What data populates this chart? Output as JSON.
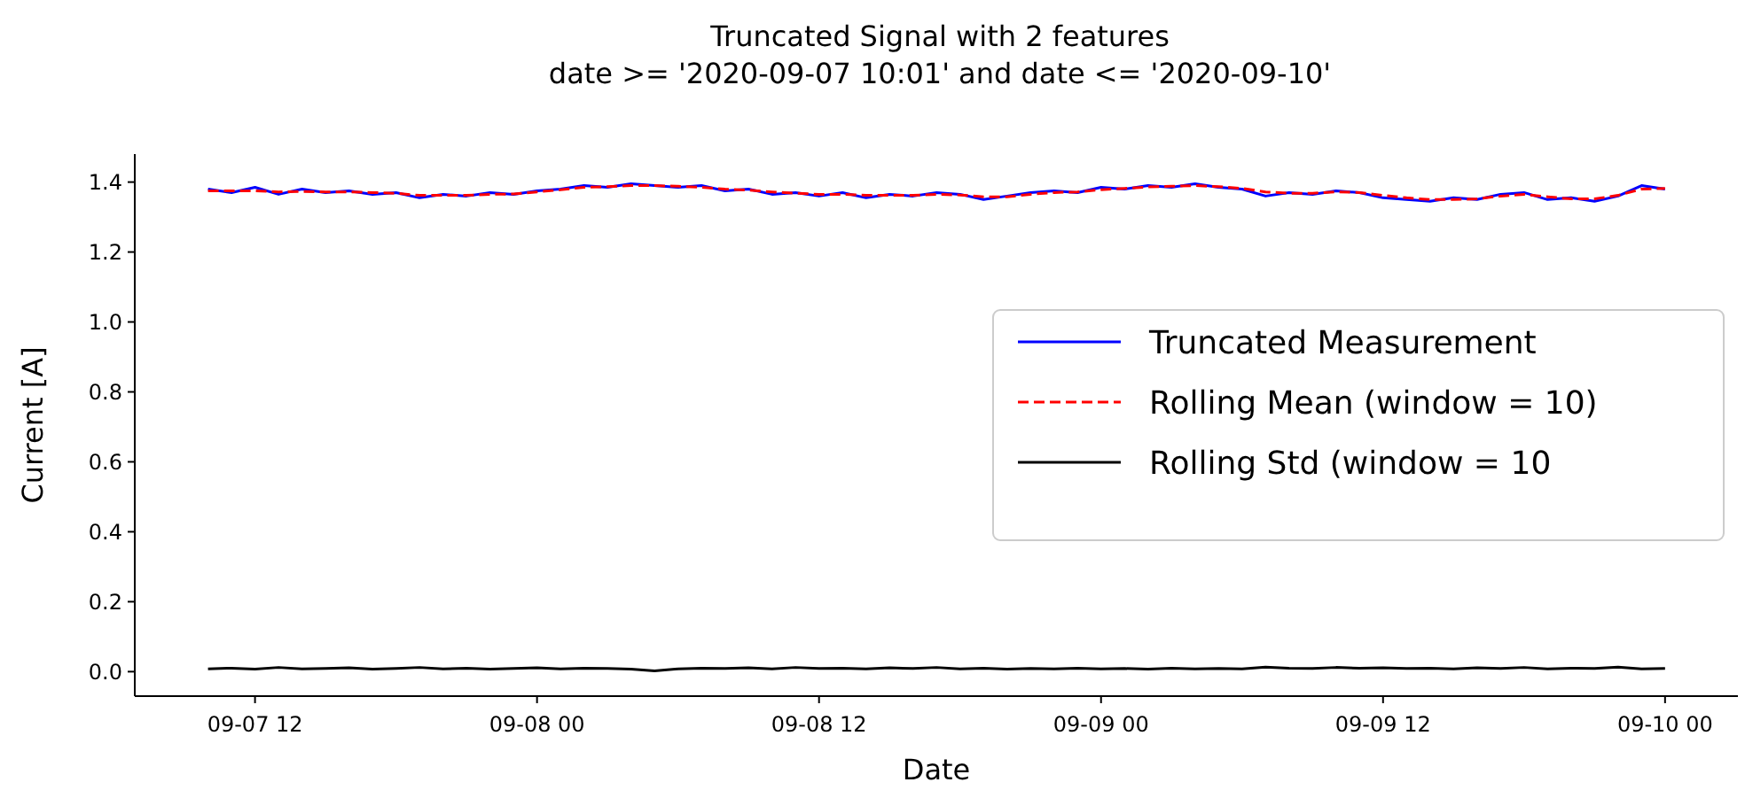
{
  "chart_data": {
    "type": "line",
    "title": "Truncated Signal with 2 features",
    "subtitle": "date >= '2020-09-07 10:01' and date <= '2020-09-10'",
    "xlabel": "Date",
    "ylabel": "Current [A]",
    "x": [
      "2020-09-07T10:00",
      "2020-09-07T11:00",
      "2020-09-07T12:00",
      "2020-09-07T13:00",
      "2020-09-07T14:00",
      "2020-09-07T15:00",
      "2020-09-07T16:00",
      "2020-09-07T17:00",
      "2020-09-07T18:00",
      "2020-09-07T19:00",
      "2020-09-07T20:00",
      "2020-09-07T21:00",
      "2020-09-07T22:00",
      "2020-09-07T23:00",
      "2020-09-08T00:00",
      "2020-09-08T01:00",
      "2020-09-08T02:00",
      "2020-09-08T03:00",
      "2020-09-08T04:00",
      "2020-09-08T05:00",
      "2020-09-08T06:00",
      "2020-09-08T07:00",
      "2020-09-08T08:00",
      "2020-09-08T09:00",
      "2020-09-08T10:00",
      "2020-09-08T11:00",
      "2020-09-08T12:00",
      "2020-09-08T13:00",
      "2020-09-08T14:00",
      "2020-09-08T15:00",
      "2020-09-08T16:00",
      "2020-09-08T17:00",
      "2020-09-08T18:00",
      "2020-09-08T19:00",
      "2020-09-08T20:00",
      "2020-09-08T21:00",
      "2020-09-08T22:00",
      "2020-09-08T23:00",
      "2020-09-09T00:00",
      "2020-09-09T01:00",
      "2020-09-09T02:00",
      "2020-09-09T03:00",
      "2020-09-09T04:00",
      "2020-09-09T05:00",
      "2020-09-09T06:00",
      "2020-09-09T07:00",
      "2020-09-09T08:00",
      "2020-09-09T09:00",
      "2020-09-09T10:00",
      "2020-09-09T11:00",
      "2020-09-09T12:00",
      "2020-09-09T13:00",
      "2020-09-09T14:00",
      "2020-09-09T15:00",
      "2020-09-09T16:00",
      "2020-09-09T17:00",
      "2020-09-09T18:00",
      "2020-09-09T19:00",
      "2020-09-09T20:00",
      "2020-09-09T21:00",
      "2020-09-09T22:00",
      "2020-09-09T23:00",
      "2020-09-10T00:00"
    ],
    "series": [
      {
        "name": "Truncated Measurement",
        "color": "#0000ff",
        "line_style": "solid",
        "values": [
          1.38,
          1.37,
          1.385,
          1.365,
          1.38,
          1.37,
          1.375,
          1.365,
          1.37,
          1.355,
          1.365,
          1.36,
          1.37,
          1.365,
          1.375,
          1.38,
          1.39,
          1.385,
          1.395,
          1.39,
          1.385,
          1.39,
          1.375,
          1.38,
          1.365,
          1.37,
          1.36,
          1.37,
          1.355,
          1.365,
          1.36,
          1.37,
          1.365,
          1.35,
          1.36,
          1.37,
          1.375,
          1.37,
          1.385,
          1.38,
          1.39,
          1.385,
          1.395,
          1.385,
          1.38,
          1.36,
          1.37,
          1.365,
          1.375,
          1.37,
          1.355,
          1.35,
          1.345,
          1.355,
          1.35,
          1.365,
          1.37,
          1.35,
          1.355,
          1.345,
          1.36,
          1.39,
          1.38
        ]
      },
      {
        "name": "Rolling Mean (window = 10)",
        "color": "#ff0000",
        "line_style": "dashed",
        "values": [
          1.375,
          1.375,
          1.375,
          1.372,
          1.373,
          1.372,
          1.372,
          1.37,
          1.368,
          1.362,
          1.362,
          1.362,
          1.365,
          1.366,
          1.372,
          1.378,
          1.385,
          1.387,
          1.39,
          1.39,
          1.388,
          1.385,
          1.38,
          1.377,
          1.372,
          1.368,
          1.365,
          1.365,
          1.362,
          1.362,
          1.362,
          1.365,
          1.363,
          1.358,
          1.358,
          1.365,
          1.37,
          1.372,
          1.378,
          1.382,
          1.386,
          1.388,
          1.39,
          1.387,
          1.382,
          1.372,
          1.368,
          1.368,
          1.372,
          1.37,
          1.362,
          1.355,
          1.35,
          1.35,
          1.352,
          1.36,
          1.365,
          1.358,
          1.352,
          1.352,
          1.362,
          1.38,
          1.382
        ]
      },
      {
        "name": "Rolling Std (window = 10",
        "color": "#000000",
        "line_style": "solid",
        "values": [
          0.008,
          0.01,
          0.007,
          0.012,
          0.008,
          0.009,
          0.011,
          0.007,
          0.009,
          0.012,
          0.008,
          0.01,
          0.007,
          0.009,
          0.011,
          0.008,
          0.01,
          0.009,
          0.007,
          0.002,
          0.008,
          0.01,
          0.009,
          0.011,
          0.008,
          0.012,
          0.009,
          0.01,
          0.008,
          0.011,
          0.009,
          0.012,
          0.008,
          0.01,
          0.007,
          0.009,
          0.008,
          0.01,
          0.008,
          0.009,
          0.007,
          0.01,
          0.008,
          0.009,
          0.008,
          0.013,
          0.01,
          0.009,
          0.012,
          0.01,
          0.011,
          0.009,
          0.01,
          0.008,
          0.011,
          0.009,
          0.012,
          0.008,
          0.01,
          0.009,
          0.013,
          0.008,
          0.009
        ]
      }
    ],
    "xlim": [
      "2020-09-07T06:53",
      "2020-09-10T03:06"
    ],
    "xticks": [
      {
        "value": "2020-09-07T12:00",
        "label": "09-07 12"
      },
      {
        "value": "2020-09-08T00:00",
        "label": "09-08 00"
      },
      {
        "value": "2020-09-08T12:00",
        "label": "09-08 12"
      },
      {
        "value": "2020-09-09T00:00",
        "label": "09-09 00"
      },
      {
        "value": "2020-09-09T12:00",
        "label": "09-09 12"
      },
      {
        "value": "2020-09-10T00:00",
        "label": "09-10 00"
      }
    ],
    "ylim": [
      -0.07,
      1.48
    ],
    "yticks": [
      {
        "value": 0,
        "label": "0.0"
      },
      {
        "value": 0.2,
        "label": "0.2"
      },
      {
        "value": 0.4,
        "label": "0.4"
      },
      {
        "value": 0.6,
        "label": "0.6"
      },
      {
        "value": 0.8,
        "label": "0.8"
      },
      {
        "value": 1,
        "label": "1.0"
      },
      {
        "value": 1.2,
        "label": "1.2"
      },
      {
        "value": 1.4,
        "label": "1.4"
      }
    ],
    "grid": false,
    "legend": "right",
    "marker": "none"
  }
}
